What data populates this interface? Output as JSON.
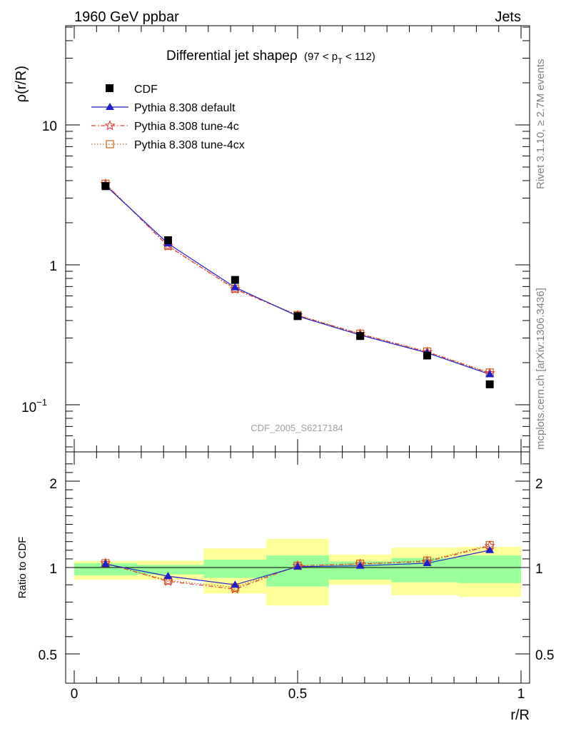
{
  "header": {
    "left": "1960 GeV ppbar",
    "right": "Jets"
  },
  "side_labels": {
    "rivet": "Rivet 3.1.10, ≥ 2.7M events",
    "mcplots": "mcplots.cern.ch [arXiv:1306.3436]"
  },
  "watermark": "CDF_2005_S6217184",
  "chart_data": {
    "type": "line",
    "title_main": "Differential jet shapeρ",
    "title_sub_prefix": "(97 < p",
    "title_sub_index": "T",
    "title_sub_suffix": " < 112)",
    "ylabel": "ρ(r/R)",
    "xlabel": "r/R",
    "ratio_ylabel": "Ratio to CDF",
    "main_ylim": [
      0.05,
      50
    ],
    "main_yscale": "log",
    "main_ytick_labels": [
      "10",
      "1",
      "10",
      "−1"
    ],
    "ratio_ylim": [
      0.4,
      2.3
    ],
    "ratio_ytick_labels": [
      "0.5",
      "1",
      "2"
    ],
    "xlim": [
      -0.02,
      1.02
    ],
    "xtick_labels": [
      "0",
      "0.5",
      "1"
    ],
    "legend_position": "top-left",
    "x": [
      0.07,
      0.21,
      0.36,
      0.5,
      0.64,
      0.79,
      0.93
    ],
    "x_edges": [
      0.0,
      0.14,
      0.29,
      0.43,
      0.57,
      0.71,
      0.86,
      1.0
    ],
    "data": {
      "name": "CDF",
      "values": [
        3.65,
        1.5,
        0.78,
        0.43,
        0.31,
        0.225,
        0.14
      ],
      "ratio_band_inner": [
        [
          0.955,
          1.05
        ],
        [
          0.96,
          1.03
        ],
        [
          0.94,
          1.09
        ],
        [
          0.89,
          1.14
        ],
        [
          0.93,
          1.07
        ],
        [
          0.915,
          1.11
        ],
        [
          0.91,
          1.14
        ]
      ],
      "ratio_band_outer": [
        [
          0.93,
          1.075
        ],
        [
          0.93,
          1.08
        ],
        [
          0.85,
          1.22
        ],
        [
          0.78,
          1.33
        ],
        [
          0.9,
          1.15
        ],
        [
          0.84,
          1.23
        ],
        [
          0.83,
          1.24
        ]
      ]
    },
    "series": [
      {
        "name": "Pythia 8.308 default",
        "color": "#1e1ecc",
        "dash": "solid",
        "marker": "triangle",
        "values": [
          3.7,
          1.42,
          0.69,
          0.43,
          0.315,
          0.235,
          0.165
        ],
        "ratio": [
          1.04,
          0.95,
          0.9,
          1.01,
          1.02,
          1.05,
          1.2
        ]
      },
      {
        "name": "Pythia 8.308 tune-4c",
        "color": "#e03a3a",
        "dash": "dashdot",
        "marker": "star",
        "values": [
          3.78,
          1.36,
          0.67,
          0.435,
          0.32,
          0.238,
          0.168
        ],
        "ratio": [
          1.05,
          0.92,
          0.875,
          1.02,
          1.04,
          1.07,
          1.25
        ]
      },
      {
        "name": "Pythia 8.308 tune-4cx",
        "color": "#c86414",
        "dash": "dotted",
        "marker": "open-square",
        "values": [
          3.8,
          1.37,
          0.675,
          0.438,
          0.322,
          0.24,
          0.17
        ],
        "ratio": [
          1.05,
          0.925,
          0.885,
          1.02,
          1.045,
          1.08,
          1.26
        ]
      }
    ]
  }
}
